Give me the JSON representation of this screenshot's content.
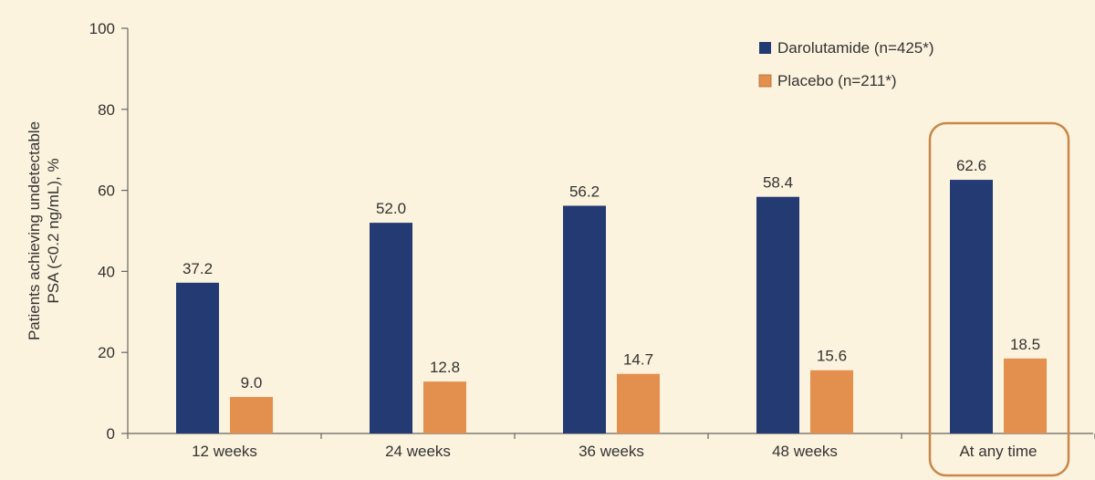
{
  "chart_data": {
    "type": "bar",
    "title": "",
    "xlabel": "",
    "ylabel_lines": [
      "Patients achieving undetectable",
      "PSA (<0.2 ng/mL), %"
    ],
    "ylim": [
      0,
      100
    ],
    "yticks": [
      0,
      20,
      40,
      60,
      80,
      100
    ],
    "categories": [
      "12 weeks",
      "24 weeks",
      "36 weeks",
      "48 weeks",
      "At any time"
    ],
    "series": [
      {
        "name": "Darolutamide (n=425*)",
        "color": "#243a73",
        "values": [
          37.2,
          52.0,
          56.2,
          58.4,
          62.6
        ],
        "labels": [
          "37.2",
          "52.0",
          "56.2",
          "58.4",
          "62.6"
        ]
      },
      {
        "name": "Placebo (n=211*)",
        "color": "#e38f4d",
        "values": [
          9.0,
          12.8,
          14.7,
          15.6,
          18.5
        ],
        "labels": [
          "9.0",
          "12.8",
          "14.7",
          "15.6",
          "18.5"
        ]
      }
    ],
    "highlight_category": "At any time",
    "highlight_color": "#c8874a",
    "legend_position": "top-right",
    "grid": false
  }
}
